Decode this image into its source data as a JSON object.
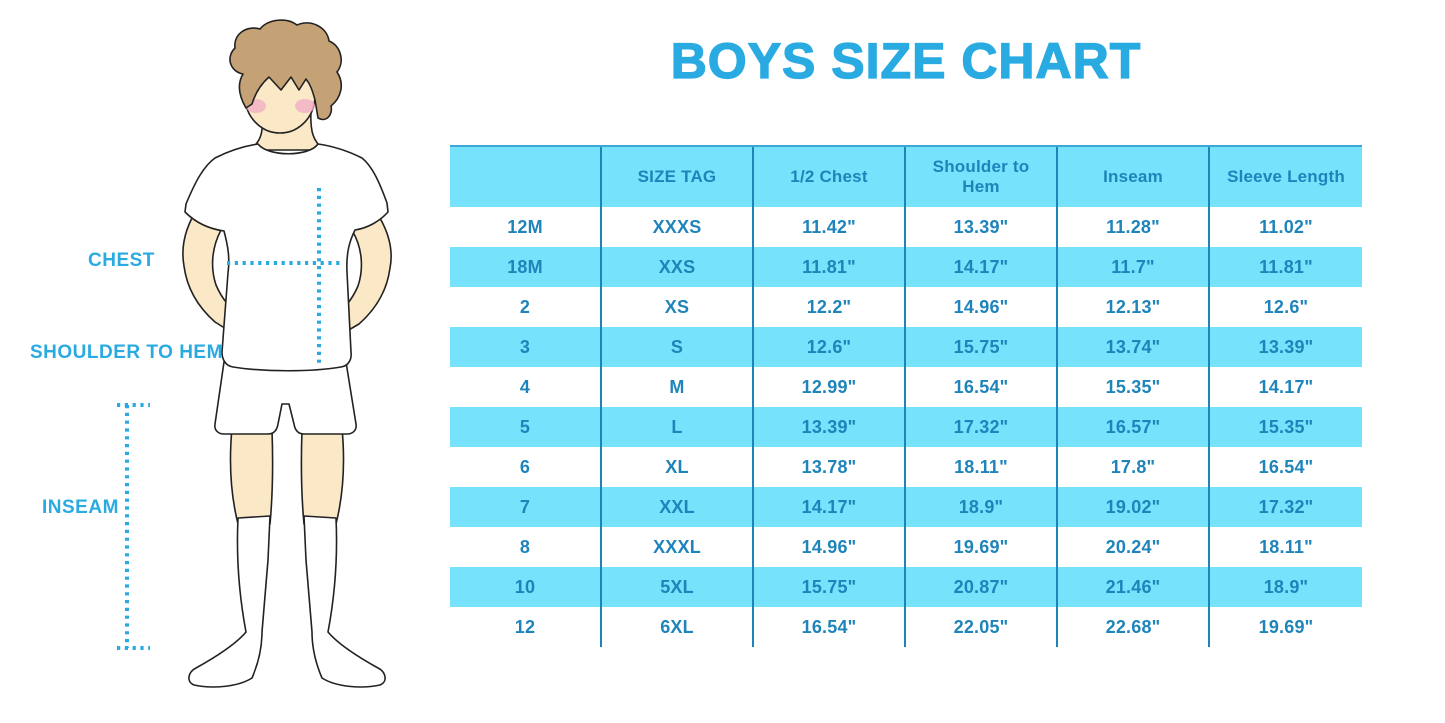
{
  "title": "BOYS SIZE CHART",
  "figure": {
    "labels": {
      "chest": "CHEST",
      "shoulder_to_hem": "SHOULDER TO HEM",
      "inseam": "INSEAM"
    }
  },
  "chart_data": {
    "type": "table",
    "title": "BOYS SIZE CHART",
    "columns": [
      "",
      "SIZE TAG",
      "1/2 Chest",
      "Shoulder to Hem",
      "Inseam",
      "Sleeve Length"
    ],
    "rows": [
      [
        "12M",
        "XXXS",
        "11.42\"",
        "13.39\"",
        "11.28\"",
        "11.02\""
      ],
      [
        "18M",
        "XXS",
        "11.81\"",
        "14.17\"",
        "11.7\"",
        "11.81\""
      ],
      [
        "2",
        "XS",
        "12.2\"",
        "14.96\"",
        "12.13\"",
        "12.6\""
      ],
      [
        "3",
        "S",
        "12.6\"",
        "15.75\"",
        "13.74\"",
        "13.39\""
      ],
      [
        "4",
        "M",
        "12.99\"",
        "16.54\"",
        "15.35\"",
        "14.17\""
      ],
      [
        "5",
        "L",
        "13.39\"",
        "17.32\"",
        "16.57\"",
        "15.35\""
      ],
      [
        "6",
        "XL",
        "13.78\"",
        "18.11\"",
        "17.8\"",
        "16.54\""
      ],
      [
        "7",
        "XXL",
        "14.17\"",
        "18.9\"",
        "19.02\"",
        "17.32\""
      ],
      [
        "8",
        "XXXL",
        "14.96\"",
        "19.69\"",
        "20.24\"",
        "18.11\""
      ],
      [
        "10",
        "5XL",
        "15.75\"",
        "20.87\"",
        "21.46\"",
        "18.9\""
      ],
      [
        "12",
        "6XL",
        "16.54\"",
        "22.05\"",
        "22.68\"",
        "19.69\""
      ]
    ],
    "row_striping": "alternating white / cyan starting white",
    "legend_position": "none",
    "grid": "vertical dividers only"
  },
  "colors": {
    "accent_blue": "#29ABE2",
    "table_fill_cyan": "#76E2FB",
    "table_ink_blue": "#1E84BA",
    "skin": "#FBE8C6",
    "hair_brown": "#C5A176",
    "blush_pink": "#F2AEC4",
    "outline": "#222222"
  }
}
